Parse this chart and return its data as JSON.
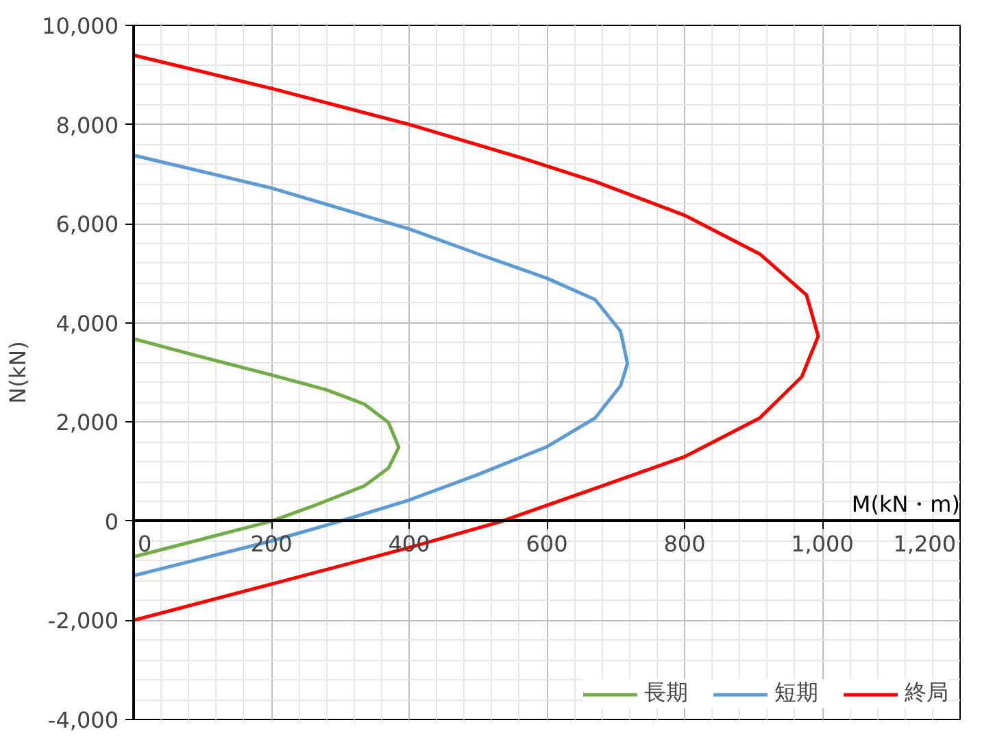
{
  "chart_data": {
    "type": "line",
    "xlabel": "M(kN・m)",
    "ylabel": "N(kN)",
    "xlim": [
      0,
      1200
    ],
    "ylim": [
      -4000,
      10000
    ],
    "xticks": [
      {
        "value": 0,
        "label": "0"
      },
      200,
      400,
      600,
      800,
      {
        "value": 1000,
        "label": "1,000"
      },
      {
        "value": 1200,
        "label": "1,200"
      }
    ],
    "yticks": [
      {
        "value": -4000,
        "label": "-4,000"
      },
      {
        "value": -2000,
        "label": "-2,000"
      },
      0,
      {
        "value": 2000,
        "label": "2,000"
      },
      {
        "value": 4000,
        "label": "4,000"
      },
      {
        "value": 6000,
        "label": "6,000"
      },
      {
        "value": 8000,
        "label": "8,000"
      },
      {
        "value": 10000,
        "label": "10,000"
      }
    ],
    "grid": true,
    "legend": "bottom right",
    "marker": "none",
    "line_style": "solid",
    "series": [
      {
        "name": "長期",
        "color": "#70ad47",
        "x": [
          0,
          200,
          267,
          335,
          370,
          385,
          370,
          335,
          280,
          200,
          88,
          0
        ],
        "values": [
          -720,
          0,
          340,
          710,
          1070,
          1490,
          1990,
          2360,
          2650,
          2950,
          3350,
          3680
        ]
      },
      {
        "name": "短期",
        "color": "#5b9bd5",
        "x": [
          0,
          200,
          300,
          401,
          500,
          600,
          670,
          707,
          717,
          707,
          670,
          600,
          500,
          401,
          200,
          0
        ],
        "values": [
          -1100,
          -400,
          0,
          430,
          940,
          1500,
          2080,
          2730,
          3180,
          3830,
          4470,
          4900,
          5390,
          5890,
          6720,
          7380
        ]
      },
      {
        "name": "終局",
        "color": "#ff0000",
        "x": [
          0,
          200,
          401,
          535,
          567,
          670,
          800,
          909,
          970,
          994,
          977,
          909,
          800,
          670,
          567,
          401,
          200,
          0
        ],
        "values": [
          -2000,
          -1270,
          -530,
          0,
          160,
          660,
          1300,
          2080,
          2910,
          3730,
          4560,
          5390,
          6170,
          6850,
          7310,
          8000,
          8730,
          9400
        ]
      }
    ]
  }
}
